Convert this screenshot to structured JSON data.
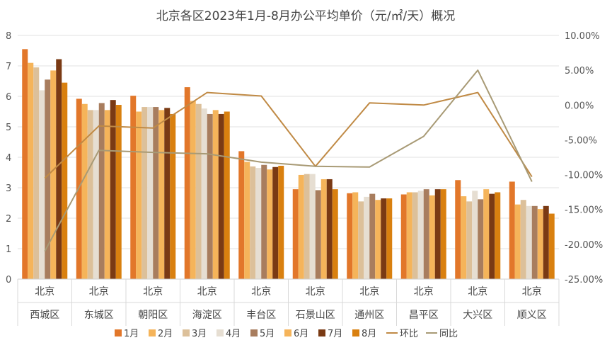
{
  "chart_data": {
    "type": "bar",
    "title": "北京各区2023年1月-8月办公平均单价（元/㎡/天）概况",
    "categories_top": [
      "北京",
      "北京",
      "北京",
      "北京",
      "北京",
      "北京",
      "北京",
      "北京",
      "北京",
      "北京"
    ],
    "categories": [
      "西城区",
      "东城区",
      "朝阳区",
      "海淀区",
      "丰台区",
      "石景山区",
      "通州区",
      "昌平区",
      "大兴区",
      "顺义区"
    ],
    "y_left": {
      "min": 0,
      "max": 8,
      "ticks": [
        "0",
        "1",
        "2",
        "3",
        "4",
        "5",
        "6",
        "7",
        "8"
      ]
    },
    "y_right": {
      "min": -25,
      "max": 10,
      "ticks": [
        "10.00%",
        "5.00%",
        "0.00%",
        "-5.00%",
        "-10.00%",
        "-15.00%",
        "-20.00%",
        "-25.00%"
      ]
    },
    "series": [
      {
        "name": "1月",
        "color": "#E2772A",
        "values": [
          7.55,
          5.92,
          6.02,
          6.3,
          4.2,
          2.95,
          2.82,
          2.78,
          3.25,
          3.2
        ]
      },
      {
        "name": "2月",
        "color": "#F5B45A",
        "values": [
          7.1,
          5.75,
          5.5,
          5.85,
          3.85,
          3.42,
          2.85,
          2.85,
          2.72,
          2.45
        ]
      },
      {
        "name": "3月",
        "color": "#DCC09A",
        "values": [
          6.95,
          5.55,
          5.65,
          5.75,
          3.7,
          3.45,
          2.55,
          2.85,
          2.55,
          2.6
        ]
      },
      {
        "name": "4月",
        "color": "#E6DED2",
        "values": [
          6.2,
          5.55,
          5.65,
          5.6,
          3.65,
          3.45,
          2.7,
          2.9,
          2.9,
          2.4
        ]
      },
      {
        "name": "5月",
        "color": "#A87D5E",
        "values": [
          6.55,
          5.78,
          5.65,
          5.42,
          3.75,
          2.92,
          2.8,
          2.95,
          2.62,
          2.4
        ]
      },
      {
        "name": "6月",
        "color": "#F5B45A",
        "values": [
          6.85,
          5.55,
          5.55,
          5.55,
          3.6,
          3.28,
          2.6,
          2.75,
          2.95,
          2.3
        ]
      },
      {
        "name": "7月",
        "color": "#7A3A14",
        "values": [
          7.22,
          5.88,
          5.62,
          5.42,
          3.68,
          3.28,
          2.65,
          2.95,
          2.8,
          2.4
        ]
      },
      {
        "name": "8月",
        "color": "#D9800F",
        "values": [
          6.45,
          5.72,
          5.42,
          5.5,
          3.72,
          2.95,
          2.65,
          2.95,
          2.85,
          2.15
        ]
      }
    ],
    "line_series": [
      {
        "name": "环比",
        "color": "#C08A45",
        "values": [
          -10.5,
          -3.0,
          -3.3,
          1.8,
          1.3,
          -8.8,
          0.3,
          0.0,
          1.8,
          -10.3
        ]
      },
      {
        "name": "同比",
        "color": "#A89A75",
        "values": [
          -21.0,
          -6.5,
          -6.8,
          -7.0,
          -8.2,
          -8.8,
          -8.9,
          -4.5,
          5.0,
          -11.0
        ]
      }
    ],
    "legend": [
      "1月",
      "2月",
      "3月",
      "4月",
      "5月",
      "6月",
      "7月",
      "8月",
      "环比",
      "同比"
    ],
    "legend_position": "bottom"
  }
}
